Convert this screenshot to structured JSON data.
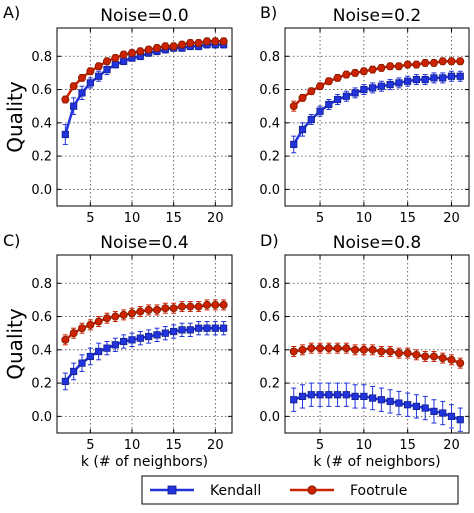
{
  "chart_data": [
    {
      "type": "line",
      "panel_label": "A)",
      "title": "Noise=0.0",
      "x": [
        2,
        3,
        4,
        5,
        6,
        7,
        8,
        9,
        10,
        11,
        12,
        13,
        14,
        15,
        16,
        17,
        18,
        19,
        20,
        21
      ],
      "series": [
        {
          "name": "Kendall",
          "values": [
            0.33,
            0.5,
            0.58,
            0.64,
            0.68,
            0.72,
            0.75,
            0.77,
            0.79,
            0.8,
            0.82,
            0.83,
            0.84,
            0.85,
            0.85,
            0.86,
            0.86,
            0.87,
            0.87,
            0.87
          ],
          "error": [
            0.06,
            0.05,
            0.04,
            0.03,
            0.03,
            0.03,
            0.02,
            0.02,
            0.02,
            0.02,
            0.02,
            0.02,
            0.02,
            0.02,
            0.02,
            0.02,
            0.02,
            0.02,
            0.02,
            0.02
          ]
        },
        {
          "name": "Footrule",
          "values": [
            0.54,
            0.62,
            0.67,
            0.71,
            0.74,
            0.77,
            0.79,
            0.81,
            0.82,
            0.83,
            0.84,
            0.85,
            0.86,
            0.86,
            0.87,
            0.88,
            0.88,
            0.89,
            0.89,
            0.89
          ],
          "error": [
            0.02,
            0.02,
            0.02,
            0.02,
            0.02,
            0.02,
            0.02,
            0.02,
            0.02,
            0.02,
            0.02,
            0.02,
            0.02,
            0.02,
            0.02,
            0.02,
            0.02,
            0.02,
            0.02,
            0.02
          ]
        }
      ],
      "xlabel": "",
      "ylabel": "Quality",
      "xlim": [
        1,
        22
      ],
      "ylim": [
        -0.1,
        0.97
      ],
      "xticks": [
        5,
        10,
        15,
        20
      ],
      "yticks": [
        0.0,
        0.2,
        0.4,
        0.6,
        0.8
      ],
      "grid": true
    },
    {
      "type": "line",
      "panel_label": "B)",
      "title": "Noise=0.2",
      "x": [
        2,
        3,
        4,
        5,
        6,
        7,
        8,
        9,
        10,
        11,
        12,
        13,
        14,
        15,
        16,
        17,
        18,
        19,
        20,
        21
      ],
      "series": [
        {
          "name": "Kendall",
          "values": [
            0.27,
            0.36,
            0.42,
            0.47,
            0.51,
            0.54,
            0.56,
            0.58,
            0.6,
            0.61,
            0.62,
            0.63,
            0.64,
            0.65,
            0.66,
            0.66,
            0.67,
            0.67,
            0.68,
            0.68
          ],
          "error": [
            0.05,
            0.04,
            0.03,
            0.03,
            0.03,
            0.03,
            0.03,
            0.03,
            0.03,
            0.03,
            0.03,
            0.03,
            0.03,
            0.03,
            0.03,
            0.03,
            0.03,
            0.03,
            0.03,
            0.03
          ]
        },
        {
          "name": "Footrule",
          "values": [
            0.5,
            0.55,
            0.59,
            0.62,
            0.65,
            0.67,
            0.69,
            0.7,
            0.71,
            0.72,
            0.73,
            0.74,
            0.74,
            0.75,
            0.75,
            0.76,
            0.76,
            0.77,
            0.77,
            0.77
          ],
          "error": [
            0.03,
            0.02,
            0.02,
            0.02,
            0.02,
            0.02,
            0.02,
            0.02,
            0.02,
            0.02,
            0.02,
            0.02,
            0.02,
            0.02,
            0.02,
            0.02,
            0.02,
            0.02,
            0.02,
            0.02
          ]
        }
      ],
      "xlabel": "",
      "ylabel": "",
      "xlim": [
        1,
        22
      ],
      "ylim": [
        -0.1,
        0.97
      ],
      "xticks": [
        5,
        10,
        15,
        20
      ],
      "yticks": [
        0.0,
        0.2,
        0.4,
        0.6,
        0.8
      ],
      "grid": true
    },
    {
      "type": "line",
      "panel_label": "C)",
      "title": "Noise=0.4",
      "x": [
        2,
        3,
        4,
        5,
        6,
        7,
        8,
        9,
        10,
        11,
        12,
        13,
        14,
        15,
        16,
        17,
        18,
        19,
        20,
        21
      ],
      "series": [
        {
          "name": "Kendall",
          "values": [
            0.21,
            0.27,
            0.32,
            0.36,
            0.39,
            0.41,
            0.43,
            0.45,
            0.46,
            0.47,
            0.48,
            0.49,
            0.5,
            0.51,
            0.52,
            0.52,
            0.53,
            0.53,
            0.53,
            0.53
          ],
          "error": [
            0.05,
            0.05,
            0.05,
            0.05,
            0.05,
            0.04,
            0.04,
            0.04,
            0.04,
            0.04,
            0.04,
            0.04,
            0.04,
            0.04,
            0.04,
            0.04,
            0.04,
            0.04,
            0.04,
            0.04
          ]
        },
        {
          "name": "Footrule",
          "values": [
            0.46,
            0.5,
            0.53,
            0.55,
            0.57,
            0.59,
            0.6,
            0.61,
            0.62,
            0.63,
            0.64,
            0.64,
            0.65,
            0.65,
            0.66,
            0.66,
            0.66,
            0.67,
            0.67,
            0.67
          ],
          "error": [
            0.03,
            0.03,
            0.03,
            0.03,
            0.03,
            0.03,
            0.03,
            0.03,
            0.03,
            0.03,
            0.03,
            0.03,
            0.03,
            0.03,
            0.03,
            0.03,
            0.03,
            0.03,
            0.03,
            0.03
          ]
        }
      ],
      "xlabel": "k (# of neighbors)",
      "ylabel": "Quality",
      "xlim": [
        1,
        22
      ],
      "ylim": [
        -0.1,
        0.97
      ],
      "xticks": [
        5,
        10,
        15,
        20
      ],
      "yticks": [
        0.0,
        0.2,
        0.4,
        0.6,
        0.8
      ],
      "grid": true
    },
    {
      "type": "line",
      "panel_label": "D)",
      "title": "Noise=0.8",
      "x": [
        2,
        3,
        4,
        5,
        6,
        7,
        8,
        9,
        10,
        11,
        12,
        13,
        14,
        15,
        16,
        17,
        18,
        19,
        20,
        21
      ],
      "series": [
        {
          "name": "Kendall",
          "values": [
            0.1,
            0.12,
            0.13,
            0.13,
            0.13,
            0.13,
            0.13,
            0.12,
            0.12,
            0.11,
            0.1,
            0.09,
            0.08,
            0.07,
            0.06,
            0.05,
            0.03,
            0.02,
            0.0,
            -0.02
          ],
          "error": [
            0.07,
            0.07,
            0.07,
            0.07,
            0.07,
            0.07,
            0.07,
            0.07,
            0.07,
            0.07,
            0.07,
            0.07,
            0.07,
            0.07,
            0.07,
            0.07,
            0.07,
            0.07,
            0.07,
            0.07
          ]
        },
        {
          "name": "Footrule",
          "values": [
            0.39,
            0.4,
            0.41,
            0.41,
            0.41,
            0.41,
            0.41,
            0.4,
            0.4,
            0.4,
            0.39,
            0.39,
            0.38,
            0.38,
            0.37,
            0.36,
            0.36,
            0.35,
            0.34,
            0.32
          ],
          "error": [
            0.03,
            0.03,
            0.03,
            0.03,
            0.03,
            0.03,
            0.03,
            0.03,
            0.03,
            0.03,
            0.03,
            0.03,
            0.03,
            0.03,
            0.03,
            0.03,
            0.03,
            0.03,
            0.03,
            0.03
          ]
        }
      ],
      "xlabel": "k (# of neighbors)",
      "ylabel": "",
      "xlim": [
        1,
        22
      ],
      "ylim": [
        -0.1,
        0.97
      ],
      "xticks": [
        5,
        10,
        15,
        20
      ],
      "yticks": [
        0.0,
        0.2,
        0.4,
        0.6,
        0.8
      ],
      "grid": true
    }
  ],
  "legend": {
    "placement": "bottom-center",
    "items": [
      {
        "label": "Kendall",
        "marker": "square",
        "color": "#2233dd"
      },
      {
        "label": "Footrule",
        "marker": "circle",
        "color": "#cc2200"
      }
    ]
  },
  "colors": {
    "Kendall": "#2233dd",
    "Footrule": "#cc2200",
    "footrule_marker_edge": "#7a1a00",
    "kendall_marker_edge": "#10208a",
    "grid": "#444444"
  }
}
